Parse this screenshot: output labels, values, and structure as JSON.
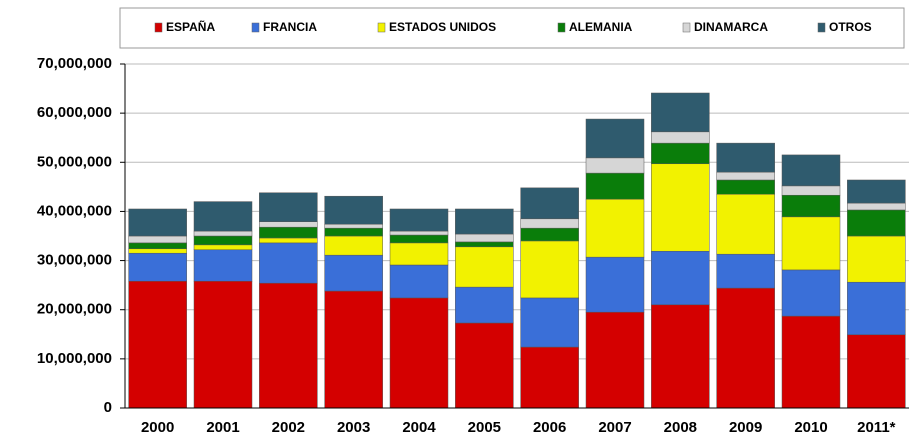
{
  "chart_data": {
    "type": "bar",
    "stacked": true,
    "categories": [
      "2000",
      "2001",
      "2002",
      "2003",
      "2004",
      "2005",
      "2006",
      "2007",
      "2008",
      "2009",
      "2010",
      "2011*"
    ],
    "series": [
      {
        "name": "ESPAÑA",
        "color": "#d40000",
        "values": [
          25800000,
          25800000,
          25400000,
          23800000,
          22400000,
          17300000,
          12400000,
          19500000,
          21000000,
          24400000,
          18700000,
          14900000
        ]
      },
      {
        "name": "FRANCIA",
        "color": "#3a6fd8",
        "values": [
          5700000,
          6400000,
          8200000,
          7300000,
          6700000,
          7300000,
          10000000,
          11200000,
          10900000,
          6900000,
          9400000,
          10700000
        ]
      },
      {
        "name": "ESTADOS UNIDOS",
        "color": "#f2f200",
        "values": [
          900000,
          1000000,
          1000000,
          3900000,
          4500000,
          8200000,
          11600000,
          11800000,
          17800000,
          12200000,
          10800000,
          9400000
        ]
      },
      {
        "name": "ALEMANIA",
        "color": "#0a7d0a",
        "values": [
          1200000,
          1800000,
          2200000,
          1600000,
          1600000,
          1000000,
          2600000,
          5300000,
          4200000,
          2900000,
          4400000,
          5300000
        ]
      },
      {
        "name": "DINAMARCA",
        "color": "#d6d6d6",
        "values": [
          1400000,
          1000000,
          1100000,
          800000,
          800000,
          1600000,
          1900000,
          3100000,
          2300000,
          1600000,
          1900000,
          1400000
        ]
      },
      {
        "name": "OTROS",
        "color": "#2f5b6e",
        "values": [
          5500000,
          6000000,
          5900000,
          5700000,
          4500000,
          5100000,
          6300000,
          7900000,
          7900000,
          5900000,
          6300000,
          4700000
        ]
      }
    ],
    "ylim": [
      0,
      70000000
    ],
    "yticks": [
      0,
      {
        "value": 10000000,
        "label": "10,000,000"
      },
      {
        "value": 20000000,
        "label": "20,000,000"
      },
      {
        "value": 30000000,
        "label": "30,000,000"
      },
      {
        "value": 40000000,
        "label": "40,000,000"
      },
      {
        "value": 50000000,
        "label": "50,000,000"
      },
      {
        "value": 60000000,
        "label": "60,000,000"
      },
      {
        "value": 70000000,
        "label": "70,000,000"
      }
    ],
    "grid": true,
    "legend": "top"
  }
}
